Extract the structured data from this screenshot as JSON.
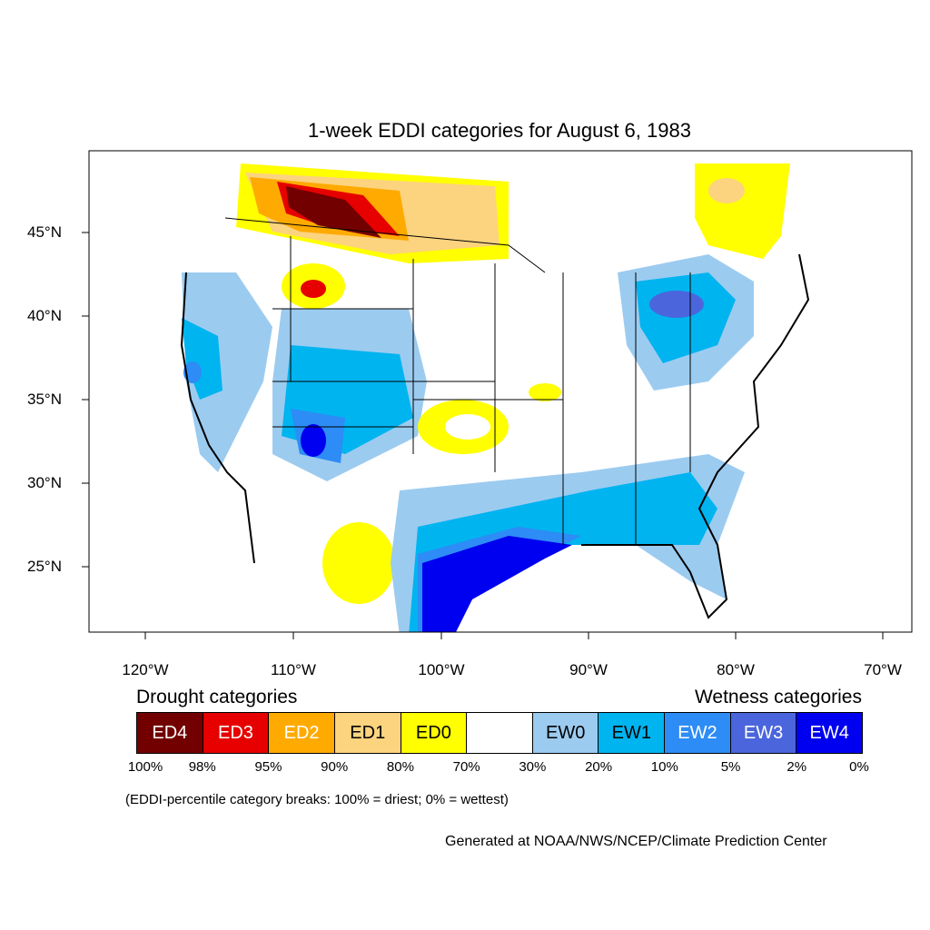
{
  "title": "1-week EDDI categories for August 6, 1983",
  "lat_labels": [
    "45°N",
    "40°N",
    "35°N",
    "30°N",
    "25°N"
  ],
  "lon_labels": [
    "120°W",
    "110°W",
    "100°W",
    "90°W",
    "80°W",
    "70°W"
  ],
  "legend": {
    "drought_heading": "Drought categories",
    "wetness_heading": "Wetness categories",
    "categories": [
      {
        "label": "ED4",
        "color": "#730000",
        "text_color": "#ffffff"
      },
      {
        "label": "ED3",
        "color": "#e60000",
        "text_color": "#ffffff"
      },
      {
        "label": "ED2",
        "color": "#ffaa00",
        "text_color": "#ffffff"
      },
      {
        "label": "ED1",
        "color": "#fcd37f",
        "text_color": "#000000"
      },
      {
        "label": "ED0",
        "color": "#ffff00",
        "text_color": "#000000"
      },
      {
        "label": "",
        "color": "#ffffff",
        "text_color": "#000000"
      },
      {
        "label": "EW0",
        "color": "#9ccbf0",
        "text_color": "#000000"
      },
      {
        "label": "EW1",
        "color": "#00b4f0",
        "text_color": "#000000"
      },
      {
        "label": "EW2",
        "color": "#2d8cf5",
        "text_color": "#ffffff"
      },
      {
        "label": "EW3",
        "color": "#4b66dc",
        "text_color": "#ffffff"
      },
      {
        "label": "EW4",
        "color": "#0000f0",
        "text_color": "#ffffff"
      }
    ],
    "breaks": [
      "100%",
      "98%",
      "95%",
      "90%",
      "80%",
      "70%",
      "30%",
      "20%",
      "10%",
      "5%",
      "2%",
      "0%"
    ]
  },
  "note": "(EDDI-percentile category breaks: 100% = driest; 0% = wettest)",
  "credit": "Generated at NOAA/NWS/NCEP/Climate Prediction Center"
}
